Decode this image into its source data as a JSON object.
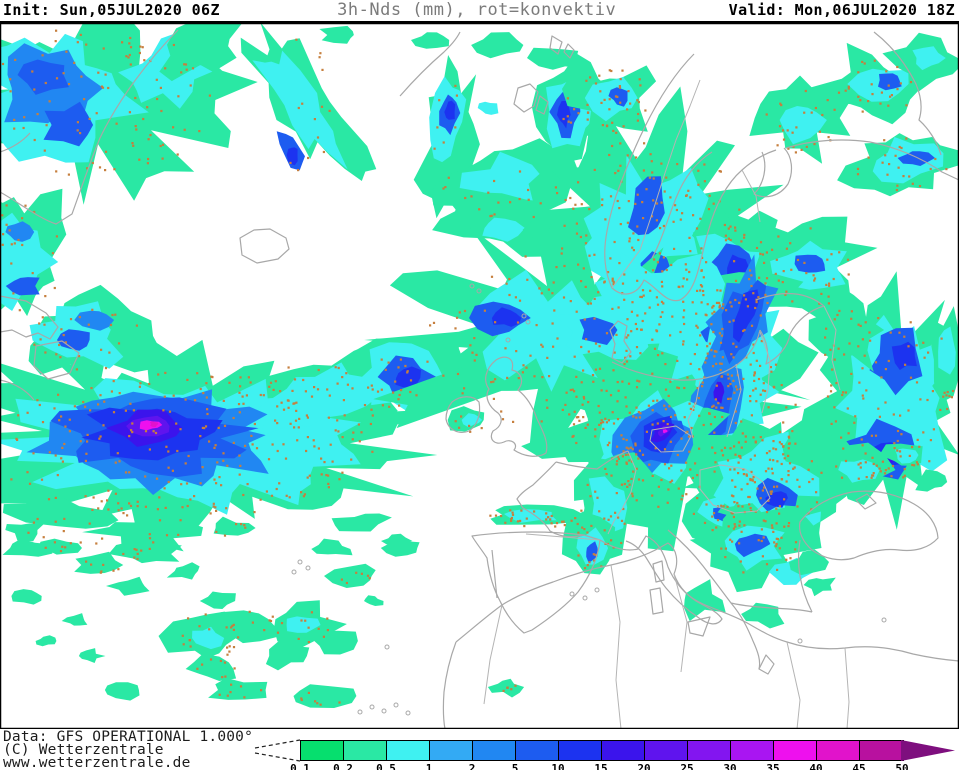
{
  "header": {
    "left": "Init: Sun,05JUL2020 06Z",
    "title": "3h-Nds (mm), rot=konvektiv",
    "right": "Valid: Mon,06JUL2020 18Z"
  },
  "footer": {
    "line1": "Data: GFS OPERATIONAL 1.000°",
    "line2": "(C) Wetterzentrale",
    "line3": "www.wetterzentrale.de"
  },
  "legend": {
    "unit": "mm",
    "ticks": [
      "0.1",
      "0.2",
      "0.5",
      "1",
      "2",
      "5",
      "10",
      "15",
      "20",
      "25",
      "30",
      "35",
      "40",
      "45",
      "50"
    ],
    "segment_colors": [
      "#06df6e",
      "#2ae8a4",
      "#3ff1f1",
      "#33aaf4",
      "#2187f2",
      "#1d5cf0",
      "#1c33f0",
      "#3b14ec",
      "#5f14ee",
      "#8315f0",
      "#a915f2",
      "#ee10ee",
      "#e113cb",
      "#b8119f"
    ],
    "arrow_color": "#7e0f7e"
  },
  "map": {
    "background": "#ffffff",
    "coastline_color": "#a8a8a8",
    "inner_border_color": "#b4b4b4",
    "frame_color": "#000000",
    "convective_dot_color": "#c67f3e",
    "convective_note": "red/orange speckles = convective precipitation"
  }
}
